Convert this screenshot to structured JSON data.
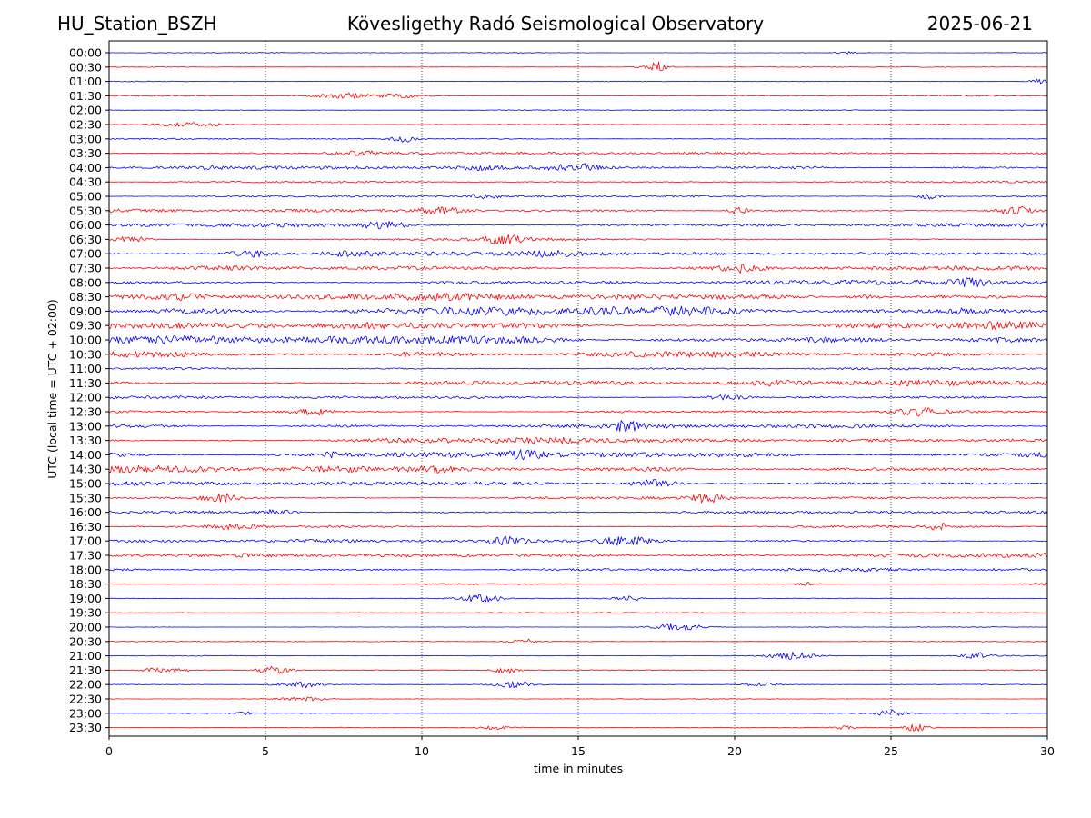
{
  "header": {
    "station": "HU_Station_BSZH",
    "observatory": "Kövesligethy Radó Seismological Observatory",
    "date": "2025-06-21"
  },
  "chart_data": {
    "type": "line",
    "xlabel": "time in minutes",
    "ylabel": "UTC (local time = UTC + 02:00)",
    "xlim": [
      0,
      30
    ],
    "x_ticks": [
      0,
      5,
      10,
      15,
      20,
      25,
      30
    ],
    "grid": "vertical dotted at each 5 minutes",
    "colors": [
      "#0000ff",
      "#ff0000"
    ],
    "rows": [
      {
        "label": "00:00",
        "noise": 0.4
      },
      {
        "label": "00:30",
        "noise": 0.4
      },
      {
        "label": "01:00",
        "noise": 0.4
      },
      {
        "label": "01:30",
        "noise": 0.8
      },
      {
        "label": "02:00",
        "noise": 0.5
      },
      {
        "label": "02:30",
        "noise": 0.6
      },
      {
        "label": "03:00",
        "noise": 0.8
      },
      {
        "label": "03:30",
        "noise": 1.8
      },
      {
        "label": "04:00",
        "noise": 2.0
      },
      {
        "label": "04:30",
        "noise": 1.0
      },
      {
        "label": "05:00",
        "noise": 1.2
      },
      {
        "label": "05:30",
        "noise": 1.8
      },
      {
        "label": "06:00",
        "noise": 2.4
      },
      {
        "label": "06:30",
        "noise": 1.2
      },
      {
        "label": "07:00",
        "noise": 2.3
      },
      {
        "label": "07:30",
        "noise": 2.6
      },
      {
        "label": "08:00",
        "noise": 2.8
      },
      {
        "label": "08:30",
        "noise": 4.0
      },
      {
        "label": "09:00",
        "noise": 5.5
      },
      {
        "label": "09:30",
        "noise": 5.5
      },
      {
        "label": "10:00",
        "noise": 5.5
      },
      {
        "label": "10:30",
        "noise": 3.5
      },
      {
        "label": "11:00",
        "noise": 1.6
      },
      {
        "label": "11:30",
        "noise": 3.0
      },
      {
        "label": "12:00",
        "noise": 1.8
      },
      {
        "label": "12:30",
        "noise": 1.5
      },
      {
        "label": "13:00",
        "noise": 2.6
      },
      {
        "label": "13:30",
        "noise": 3.2
      },
      {
        "label": "14:00",
        "noise": 3.6
      },
      {
        "label": "14:30",
        "noise": 4.2
      },
      {
        "label": "15:00",
        "noise": 2.8
      },
      {
        "label": "15:30",
        "noise": 1.6
      },
      {
        "label": "16:00",
        "noise": 1.8
      },
      {
        "label": "16:30",
        "noise": 1.2
      },
      {
        "label": "17:00",
        "noise": 1.8
      },
      {
        "label": "17:30",
        "noise": 2.6
      },
      {
        "label": "18:00",
        "noise": 1.8
      },
      {
        "label": "18:30",
        "noise": 0.7
      },
      {
        "label": "19:00",
        "noise": 0.6
      },
      {
        "label": "19:30",
        "noise": 0.5
      },
      {
        "label": "20:00",
        "noise": 0.4
      },
      {
        "label": "20:30",
        "noise": 0.5
      },
      {
        "label": "21:00",
        "noise": 0.6
      },
      {
        "label": "21:30",
        "noise": 0.6
      },
      {
        "label": "22:00",
        "noise": 0.4
      },
      {
        "label": "22:30",
        "noise": 0.4
      },
      {
        "label": "23:00",
        "noise": 0.4
      },
      {
        "label": "23:30",
        "noise": 0.4
      }
    ]
  }
}
